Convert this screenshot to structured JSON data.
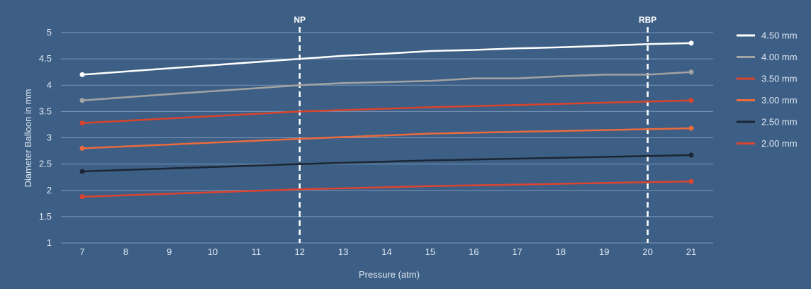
{
  "chart_data": {
    "type": "line",
    "xlabel": "Pressure (atm)",
    "ylabel": "Diameter Balloon in mm",
    "xlim": [
      7,
      21
    ],
    "ylim": [
      1,
      5
    ],
    "x_ticks": [
      7,
      8,
      9,
      10,
      11,
      12,
      13,
      14,
      15,
      16,
      17,
      18,
      19,
      20,
      21
    ],
    "y_ticks": [
      1,
      1.5,
      2,
      2.5,
      3,
      3.5,
      4,
      4.5,
      5
    ],
    "grid": true,
    "legend_position": "right",
    "markers": [
      {
        "label": "NP",
        "x": 12
      },
      {
        "label": "RBP",
        "x": 20
      }
    ],
    "series": [
      {
        "name": "4.50 mm",
        "color": "#ffffff",
        "x": [
          7,
          12,
          13,
          14,
          15,
          16,
          17,
          18,
          19,
          20,
          21
        ],
        "y": [
          4.2,
          4.5,
          4.56,
          4.6,
          4.65,
          4.67,
          4.7,
          4.72,
          4.75,
          4.78,
          4.8
        ]
      },
      {
        "name": "4.00 mm",
        "color": "#a3a3a3",
        "x": [
          7,
          9,
          12,
          13,
          14,
          15,
          16,
          17,
          18,
          19,
          20,
          21
        ],
        "y": [
          3.71,
          3.83,
          4.0,
          4.04,
          4.06,
          4.08,
          4.13,
          4.13,
          4.17,
          4.2,
          4.2,
          4.25
        ]
      },
      {
        "name": "3.50 mm",
        "color": "#d9432a",
        "x": [
          7,
          12,
          15,
          21
        ],
        "y": [
          3.28,
          3.5,
          3.58,
          3.71
        ]
      },
      {
        "name": "3.00 mm",
        "color": "#ec6a3c",
        "x": [
          7,
          12,
          15,
          21
        ],
        "y": [
          2.8,
          2.98,
          3.08,
          3.18
        ]
      },
      {
        "name": "2.50 mm",
        "color": "#1c2633",
        "x": [
          7,
          12,
          15,
          21
        ],
        "y": [
          2.36,
          2.5,
          2.57,
          2.67
        ]
      },
      {
        "name": "2.00 mm",
        "color": "#dc4430",
        "x": [
          7,
          12,
          15,
          21
        ],
        "y": [
          1.88,
          2.02,
          2.08,
          2.17
        ]
      }
    ]
  }
}
